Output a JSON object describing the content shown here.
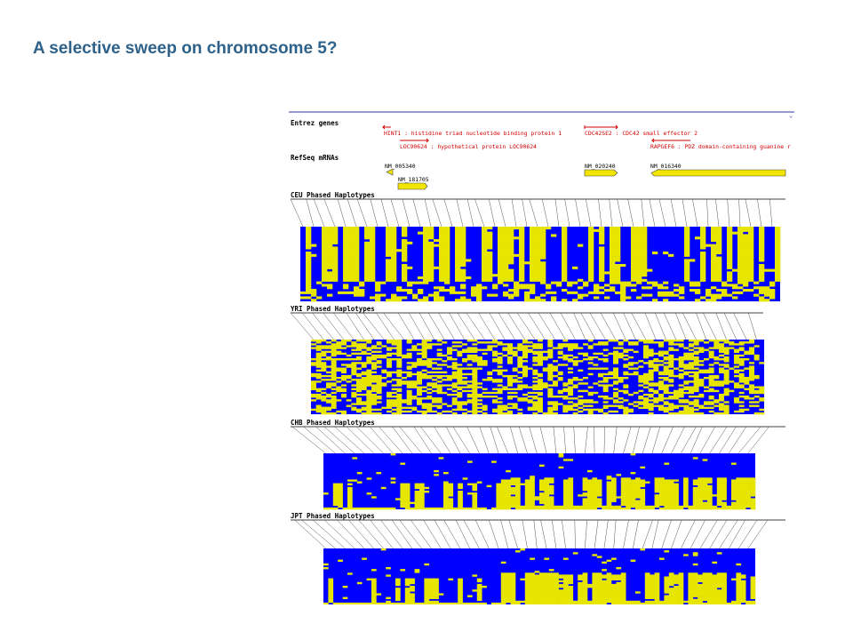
{
  "slide": {
    "title": "A selective sweep on chromosome 5?"
  },
  "colors": {
    "title": "#2e6189",
    "haplotype_allele_a": "#0000ff",
    "haplotype_allele_b": "#e6e600",
    "gene_red": "#d40000",
    "gene_box": "#f2e600",
    "ruler": "#3333aa"
  },
  "tracks": {
    "entrez": {
      "label": "Entrez genes",
      "genes": [
        {
          "name": "HINT1 : histidine triad nucleotide binding protein 1",
          "strand": "-"
        },
        {
          "name": "CDC42SE2 : CDC42 small effector 2",
          "strand": "+"
        },
        {
          "name": "LOC90624 : hypothetical protein LOC90624",
          "strand": "+"
        },
        {
          "name": "RAPGEF6 : PDZ domain-containing guanine r",
          "strand": "-"
        }
      ]
    },
    "refseq": {
      "label": "RefSeq mRNAs",
      "mrnas": [
        "NM_005340",
        "NM_181705",
        "NM_020240",
        "NM_016340"
      ]
    },
    "haplotypes": [
      {
        "label": "CEU Phased Haplotypes",
        "pattern": "mixed-swept"
      },
      {
        "label": "YRI Phased Haplotypes",
        "pattern": "diverse"
      },
      {
        "label": "CHB Phased Haplotypes",
        "pattern": "swept"
      },
      {
        "label": "JPT Phased Haplotypes",
        "pattern": "swept"
      }
    ]
  }
}
